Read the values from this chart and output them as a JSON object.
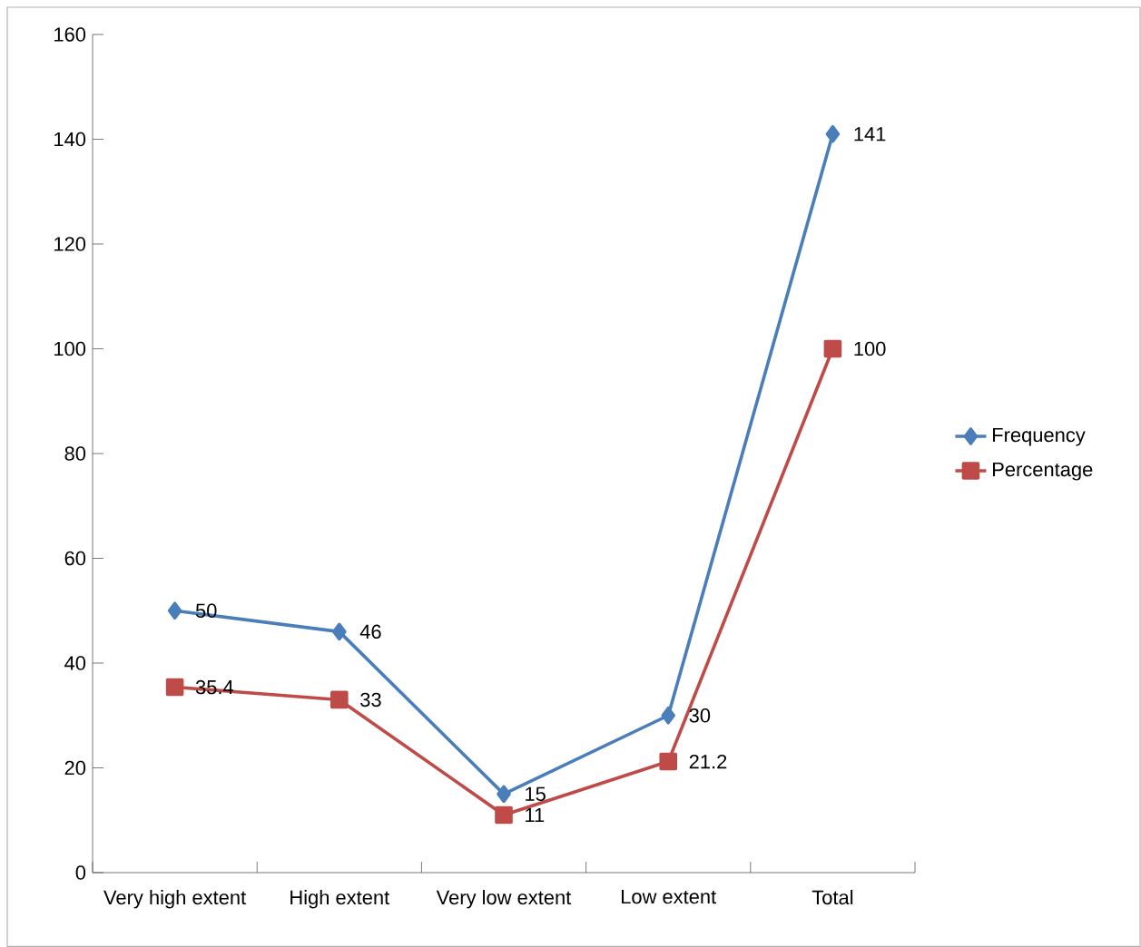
{
  "chart_data": {
    "type": "line",
    "categories": [
      "Very high extent",
      "High extent",
      "Very low extent",
      "Low extent",
      "Total"
    ],
    "series": [
      {
        "name": "Frequency",
        "color": "#4a7ebb",
        "marker": "diamond",
        "values": [
          50,
          46,
          15,
          30,
          141
        ]
      },
      {
        "name": "Percentage",
        "color": "#be4b48",
        "marker": "square",
        "values": [
          35.4,
          33,
          11,
          21.2,
          100
        ]
      }
    ],
    "ylim": [
      0,
      160
    ],
    "yticks": [
      0,
      20,
      40,
      60,
      80,
      100,
      120,
      140,
      160
    ],
    "data_labels": true,
    "legend": "right",
    "grid": false
  }
}
